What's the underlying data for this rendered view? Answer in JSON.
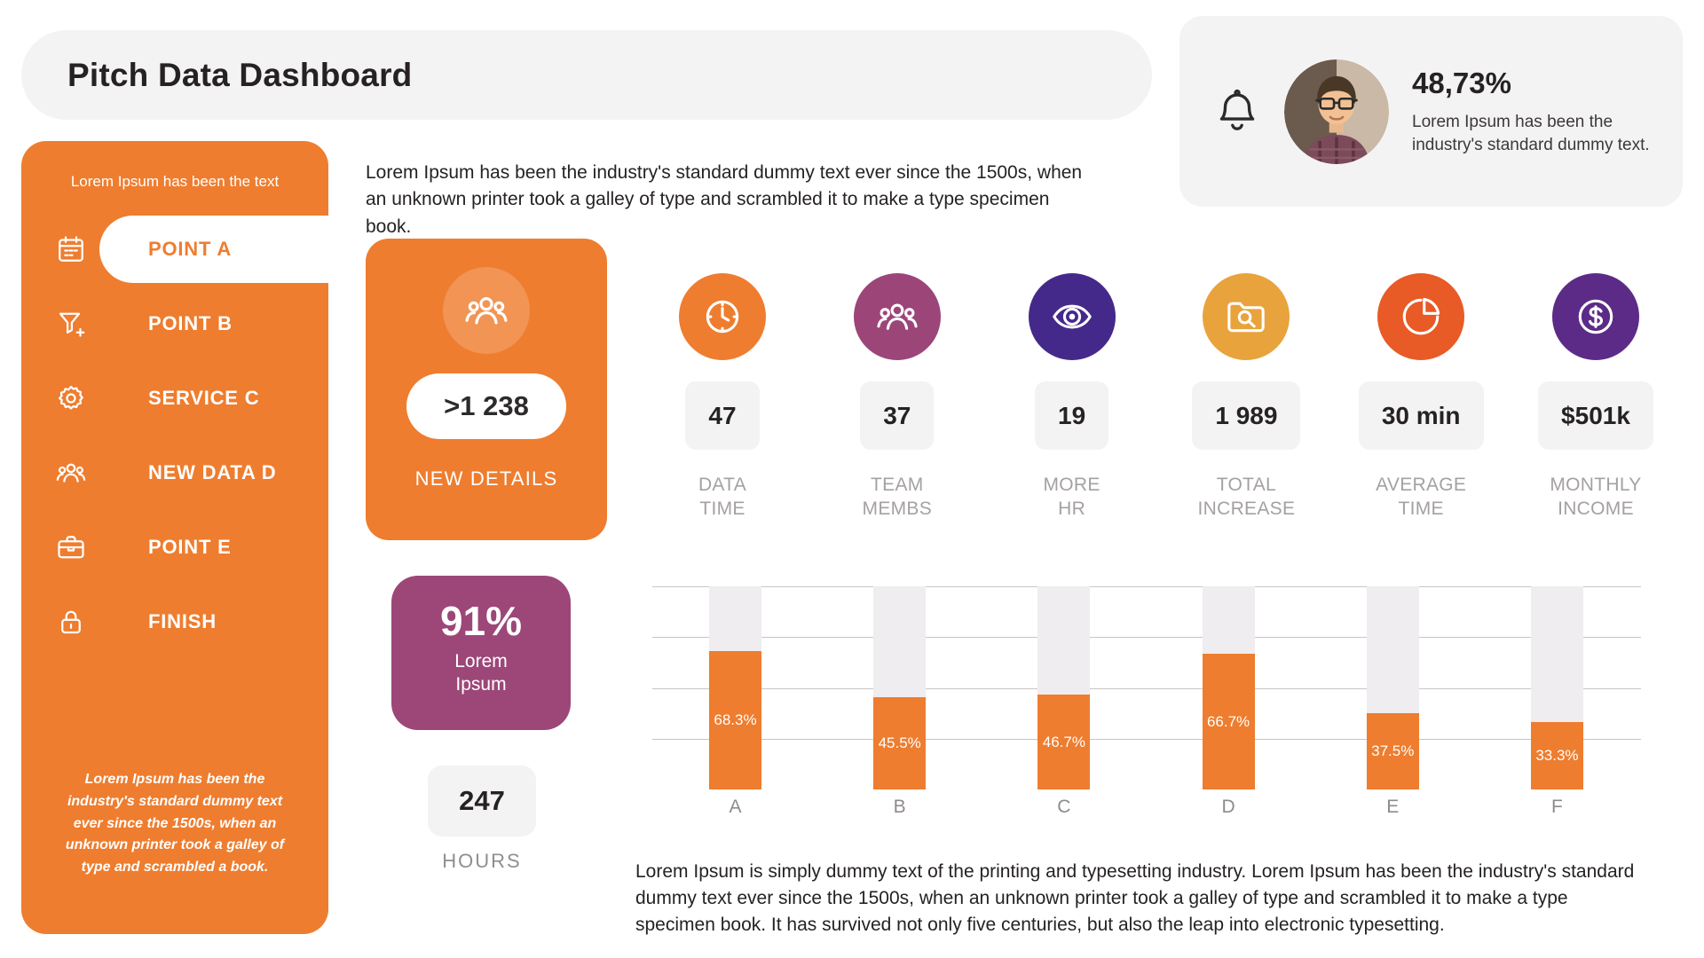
{
  "colors": {
    "orange": "#EE7D2F",
    "purple": "#9C4778",
    "gray_bg": "#F4F3F4",
    "track_gray": "#EFEDEF",
    "text_dark": "#262223",
    "text_gray": "#A5A0A3"
  },
  "header": {
    "title": "Pitch Data Dashboard"
  },
  "profile": {
    "percent": "48,73%",
    "text": "Lorem Ipsum has been the industry's standard dummy text."
  },
  "sidebar": {
    "top_text": "Lorem Ipsum has been the text",
    "items": [
      {
        "label": "POINT A",
        "icon": "calendar-icon",
        "active": true
      },
      {
        "label": "POINT B",
        "icon": "filter-icon",
        "active": false
      },
      {
        "label": "SERVICE C",
        "icon": "gear-icon",
        "active": false
      },
      {
        "label": "NEW DATA D",
        "icon": "people-icon",
        "active": false
      },
      {
        "label": "POINT E",
        "icon": "briefcase-icon",
        "active": false
      },
      {
        "label": "FINISH",
        "icon": "lock-icon",
        "active": false
      }
    ],
    "bottom_text": "Lorem Ipsum has been the industry's standard dummy text ever since the 1500s, when an unknown printer took a galley of type and scrambled  a book."
  },
  "intro_text": "Lorem Ipsum has been the industry's standard dummy text ever since the 1500s, when an unknown printer took a galley of type and scrambled it to make a type specimen book.",
  "highlight_card": {
    "icon": "people-icon",
    "value": ">1 238",
    "label": "NEW DETAILS"
  },
  "percent_card": {
    "value": "91%",
    "label": "Lorem Ipsum"
  },
  "hours_card": {
    "value": "247",
    "label": "HOURS"
  },
  "stats": [
    {
      "value": "47",
      "label_lines": [
        "DATA",
        "TIME"
      ],
      "icon": "clock-icon",
      "color": "#EE7D2F"
    },
    {
      "value": "37",
      "label_lines": [
        "TEAM",
        "MEMBS"
      ],
      "icon": "people-icon",
      "color": "#9C4578"
    },
    {
      "value": "19",
      "label_lines": [
        "MORE",
        "HR"
      ],
      "icon": "eye-icon",
      "color": "#45298A"
    },
    {
      "value": "1 989",
      "label_lines": [
        "TOTAL",
        "INCREASE"
      ],
      "icon": "folder-search-icon",
      "color": "#E8A33C"
    },
    {
      "value": "30 min",
      "label_lines": [
        "AVERAGE",
        "TIME"
      ],
      "icon": "pie-chart-icon",
      "color": "#E85A26"
    },
    {
      "value": "$501k",
      "label_lines": [
        "MONTHLY",
        "INCOME"
      ],
      "icon": "dollar-icon",
      "color": "#5C2B87"
    }
  ],
  "chart_data": {
    "type": "bar",
    "categories": [
      "A",
      "B",
      "C",
      "D",
      "E",
      "F"
    ],
    "values": [
      68.3,
      45.5,
      46.7,
      66.7,
      37.5,
      33.3
    ],
    "value_labels": [
      "68.3%",
      "45.5%",
      "46.7%",
      "66.7%",
      "37.5%",
      "33.3%"
    ],
    "ylim": [
      0,
      100
    ],
    "grid": true,
    "gridline_values": [
      100,
      75,
      50,
      25
    ],
    "legend": "none",
    "bar_color": "#EE7D2F",
    "track_color": "#EFEDEF"
  },
  "footer_text": "Lorem Ipsum is simply dummy text of the printing and typesetting industry. Lorem Ipsum has been the industry's standard dummy text ever since the 1500s, when an unknown printer took a galley of type and scrambled it to make a type specimen book. It has survived not only five centuries, but also the leap into electronic typesetting."
}
